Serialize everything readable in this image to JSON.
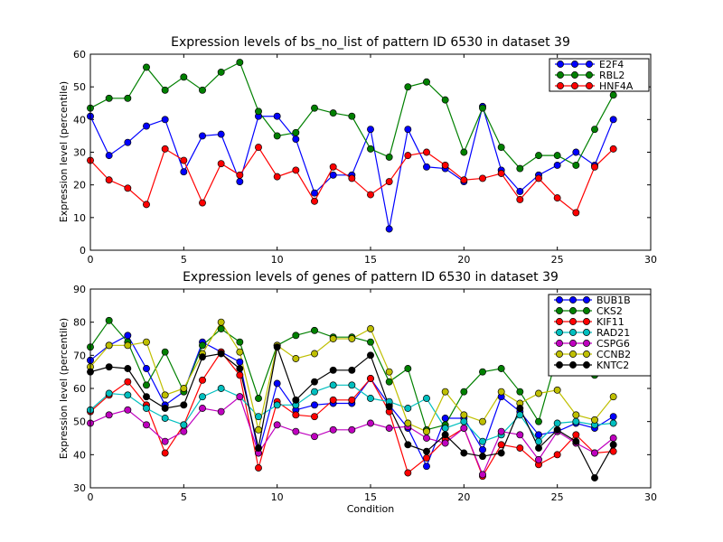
{
  "chart_data": [
    {
      "type": "line",
      "title": "Expression levels of bs_no_list of pattern ID 6530 in dataset 39",
      "xlabel": "",
      "ylabel": "Expression level (percentile)",
      "xlim": [
        0,
        30
      ],
      "ylim": [
        0,
        60
      ],
      "xticks": [
        0,
        5,
        10,
        15,
        20,
        25,
        30
      ],
      "yticks": [
        0,
        10,
        20,
        30,
        40,
        50,
        60
      ],
      "grid": false,
      "legend_position": "top-right",
      "x": [
        0,
        1,
        2,
        3,
        4,
        5,
        6,
        7,
        8,
        9,
        10,
        11,
        12,
        13,
        14,
        15,
        16,
        17,
        18,
        19,
        20,
        21,
        22,
        23,
        24,
        25,
        26,
        27,
        28
      ],
      "series": [
        {
          "name": "E2F4",
          "color": "#0000ff",
          "values": [
            41,
            29,
            33,
            38,
            40,
            24,
            35,
            35.5,
            21,
            41,
            41,
            34,
            17.5,
            23,
            23,
            37,
            6.5,
            37,
            25.5,
            25,
            21,
            44,
            24.5,
            18,
            23,
            26,
            30,
            26,
            40
          ]
        },
        {
          "name": "RBL2",
          "color": "#008000",
          "values": [
            43.5,
            46.5,
            46.5,
            56,
            49,
            53,
            49,
            54.5,
            57.5,
            42.5,
            35,
            36,
            43.5,
            42,
            41,
            31,
            28.5,
            50,
            51.5,
            46,
            30,
            43.5,
            31.5,
            25,
            29,
            29,
            26,
            37,
            47.5
          ]
        },
        {
          "name": "HNF4A",
          "color": "#ff0000",
          "values": [
            27.5,
            21.5,
            19,
            14,
            31,
            27.5,
            14.5,
            26.5,
            23,
            31.5,
            22.5,
            24.5,
            15,
            25.5,
            22,
            17,
            21,
            29,
            30,
            26,
            21.5,
            22,
            23.5,
            15.5,
            22,
            16,
            11.5,
            25.5,
            31
          ]
        }
      ]
    },
    {
      "type": "line",
      "title": "Expression levels of genes of pattern ID 6530 in dataset 39",
      "xlabel": "Condition",
      "ylabel": "Expression level (percentile)",
      "xlim": [
        0,
        30
      ],
      "ylim": [
        30,
        90
      ],
      "xticks": [
        0,
        5,
        10,
        15,
        20,
        25,
        30
      ],
      "yticks": [
        30,
        40,
        50,
        60,
        70,
        80,
        90
      ],
      "grid": false,
      "legend_position": "top-right",
      "x": [
        0,
        1,
        2,
        3,
        4,
        5,
        6,
        7,
        8,
        9,
        10,
        11,
        12,
        13,
        14,
        15,
        16,
        17,
        18,
        19,
        20,
        21,
        22,
        23,
        24,
        25,
        26,
        27,
        28
      ],
      "series": [
        {
          "name": "BUB1B",
          "color": "#0000ff",
          "values": [
            68.5,
            73,
            76,
            66,
            55,
            59,
            74,
            71,
            68,
            40.5,
            61.5,
            53.5,
            55,
            55.5,
            55.5,
            63,
            55,
            48,
            36.5,
            51,
            51,
            41.5,
            57.5,
            53,
            46,
            47,
            49.5,
            48,
            51.5
          ]
        },
        {
          "name": "CKS2",
          "color": "#008000",
          "values": [
            72.5,
            80.5,
            74,
            61,
            71,
            59,
            73,
            78,
            74,
            57,
            73,
            76,
            77.5,
            75.5,
            75.5,
            74,
            62,
            66,
            47.5,
            49,
            59,
            65,
            66,
            59,
            50,
            70,
            65.5,
            64,
            67
          ]
        },
        {
          "name": "KIF11",
          "color": "#ff0000",
          "values": [
            53,
            58,
            62,
            55,
            40.5,
            49,
            62.5,
            71,
            64,
            36,
            56,
            52,
            51.5,
            56.5,
            56.5,
            63,
            53,
            34.5,
            39,
            44.5,
            48,
            33.5,
            43,
            42,
            37,
            40,
            46,
            40.5,
            41
          ]
        },
        {
          "name": "RAD21",
          "color": "#00bfbf",
          "values": [
            53.5,
            58.5,
            58,
            54,
            51,
            49,
            57.5,
            60,
            57.5,
            51.5,
            55,
            55,
            59,
            61,
            61,
            57,
            56,
            54,
            57,
            48,
            50,
            44,
            46,
            52,
            44,
            49.5,
            50,
            49,
            49.5
          ]
        },
        {
          "name": "CSPG6",
          "color": "#bf00bf",
          "values": [
            49.5,
            52,
            53.5,
            49,
            44,
            47,
            54,
            53,
            57.5,
            40.5,
            49,
            47,
            45.5,
            47.5,
            47.5,
            49.5,
            48,
            48.5,
            45,
            43.5,
            48,
            34,
            47,
            46,
            38.5,
            47,
            43.5,
            40.5,
            45
          ]
        },
        {
          "name": "CCNB2",
          "color": "#bfbf00",
          "values": [
            66.5,
            73,
            73,
            74,
            58,
            60,
            70.5,
            80,
            71,
            47.5,
            73,
            69,
            70.5,
            75,
            75,
            78,
            65,
            49.5,
            47,
            59,
            52,
            50,
            59,
            55.5,
            58.5,
            59.5,
            52,
            50.5,
            57.5
          ]
        },
        {
          "name": "KNTC2",
          "color": "#000000",
          "values": [
            65,
            66.5,
            66,
            57.5,
            54,
            55,
            69.5,
            70.5,
            66,
            42,
            72.5,
            56.5,
            62,
            65.5,
            65.5,
            70,
            54.5,
            43,
            41,
            46,
            40.5,
            39.5,
            40.5,
            54,
            42,
            47.5,
            44,
            33,
            43
          ]
        }
      ]
    }
  ]
}
